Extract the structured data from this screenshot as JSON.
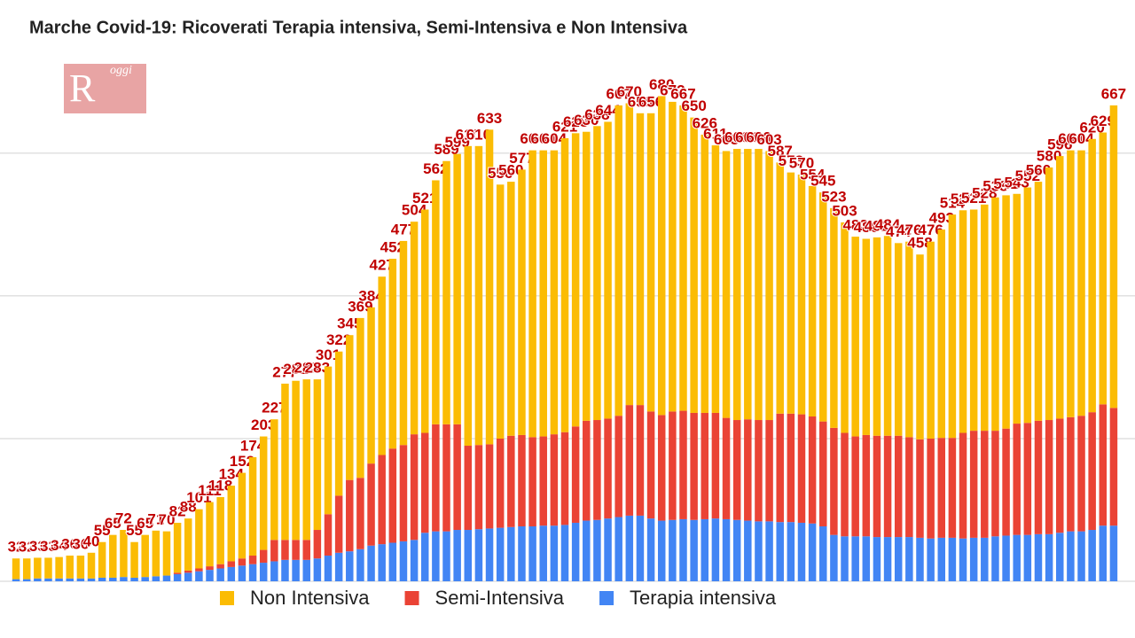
{
  "chart_data": {
    "type": "stacked_bar",
    "title": "Marche Covid-19: Ricoverati Terapia intensiva, Semi-Intensiva e Non Intensiva",
    "logo": {
      "letter": "R",
      "text": "oggi"
    },
    "ylim": [
      0,
      770
    ],
    "yticks": [
      0,
      200,
      400,
      600
    ],
    "grid": true,
    "legend": "bottom",
    "categories": [
      null,
      null,
      null,
      null,
      null,
      null,
      null,
      null,
      null,
      null,
      null,
      null,
      null,
      null,
      null,
      null,
      null,
      null,
      null,
      null,
      null,
      null,
      null,
      null,
      null,
      null,
      null,
      null,
      null,
      null,
      null,
      null,
      null,
      null,
      null,
      null,
      null,
      null,
      null,
      null,
      null,
      null,
      null,
      null,
      null,
      null,
      null,
      null,
      null,
      null,
      null,
      null,
      null,
      null,
      null,
      null,
      null,
      null,
      null,
      null,
      null,
      null,
      null,
      null,
      null,
      null,
      null,
      null,
      null,
      null,
      null,
      null,
      null,
      null,
      null,
      null,
      null,
      null,
      null,
      null,
      null,
      null,
      null,
      null,
      null,
      null,
      null,
      null,
      null,
      null,
      null,
      null,
      null,
      null,
      null,
      null,
      null,
      null,
      null,
      null,
      null,
      null,
      null
    ],
    "series": [
      {
        "name": "Non Intensiva",
        "color": "#fbbc04",
        "values": [
          29,
          29,
          29,
          29,
          30,
          32,
          32,
          36,
          50,
          60,
          66,
          50,
          59,
          64,
          62,
          70,
          73,
          83,
          90,
          94,
          106,
          120,
          138,
          159,
          169,
          219,
          223,
          225,
          211,
          207,
          202,
          203,
          224,
          219,
          250,
          266,
          286,
          298,
          313,
          342,
          369,
          379,
          420,
          419,
          441,
          356,
          356,
          372,
          402,
          401,
          398,
          412,
          411,
          405,
          412,
          416,
          435,
          423,
          409,
          418,
          447,
          434,
          428,
          414,
          390,
          375,
          374,
          380,
          379,
          380,
          377,
          352,
          338,
          336,
          323,
          321,
          308,
          295,
          280,
          275,
          278,
          280,
          270,
          274,
          259,
          276,
          292,
          313,
          312,
          310,
          317,
          327,
          327,
          322,
          330,
          335,
          354,
          368,
          374,
          372,
          383,
          381,
          424
        ]
      },
      {
        "name": "Semi-Intensiva",
        "color": "#ea4335",
        "values": [
          0,
          0,
          0,
          0,
          0,
          0,
          0,
          0,
          0,
          0,
          0,
          0,
          0,
          0,
          0,
          2,
          3,
          4,
          5,
          6,
          8,
          10,
          12,
          18,
          30,
          28,
          28,
          28,
          40,
          58,
          80,
          100,
          100,
          115,
          125,
          132,
          135,
          148,
          140,
          150,
          150,
          148,
          118,
          118,
          118,
          125,
          128,
          128,
          125,
          125,
          128,
          130,
          135,
          140,
          140,
          140,
          142,
          155,
          155,
          150,
          148,
          152,
          152,
          150,
          149,
          148,
          142,
          140,
          142,
          142,
          142,
          152,
          152,
          152,
          150,
          147,
          150,
          145,
          140,
          142,
          142,
          142,
          142,
          140,
          138,
          140,
          140,
          140,
          148,
          150,
          150,
          148,
          150,
          156,
          157,
          159,
          160,
          160,
          160,
          162,
          165,
          170,
          165
        ]
      },
      {
        "name": "Terapia intensiva",
        "color": "#4285f4",
        "values": [
          3,
          3,
          4,
          4,
          4,
          4,
          4,
          4,
          5,
          5,
          6,
          5,
          6,
          7,
          8,
          10,
          12,
          14,
          16,
          18,
          20,
          22,
          24,
          26,
          28,
          30,
          30,
          30,
          32,
          36,
          40,
          42,
          45,
          50,
          52,
          54,
          56,
          58,
          68,
          70,
          70,
          72,
          72,
          73,
          74,
          75,
          76,
          77,
          77,
          78,
          78,
          79,
          82,
          85,
          86,
          88,
          90,
          92,
          92,
          88,
          85,
          86,
          87,
          86,
          87,
          88,
          87,
          86,
          85,
          84,
          84,
          83,
          83,
          82,
          81,
          77,
          65,
          63,
          63,
          63,
          62,
          62,
          62,
          62,
          61,
          60,
          61,
          61,
          60,
          61,
          61,
          63,
          64,
          65,
          65,
          66,
          66,
          68,
          70,
          70,
          72,
          78,
          78
        ]
      }
    ],
    "totals": [
      32,
      32,
      33,
      33,
      34,
      36,
      36,
      40,
      55,
      65,
      72,
      55,
      65,
      71,
      70,
      82,
      88,
      101,
      111,
      118,
      134,
      152,
      174,
      203,
      227,
      277,
      281,
      283,
      283,
      301,
      322,
      345,
      369,
      384,
      427,
      452,
      477,
      504,
      521,
      562,
      589,
      599,
      610,
      610,
      633,
      556,
      560,
      577,
      604,
      604,
      604,
      621,
      628,
      630,
      638,
      644,
      667,
      670,
      656,
      656,
      680,
      672,
      667,
      650,
      626,
      611,
      603,
      606,
      606,
      606,
      603,
      587,
      573,
      570,
      554,
      545,
      523,
      503,
      483,
      480,
      482,
      484,
      474,
      476,
      458,
      476,
      493,
      514,
      520,
      521,
      528,
      538,
      541,
      543,
      552,
      560,
      580,
      596,
      604,
      604,
      620,
      629,
      667
    ]
  }
}
